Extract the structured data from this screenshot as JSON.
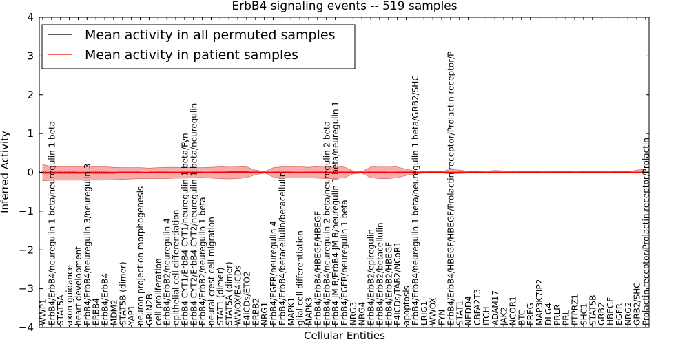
{
  "chart_data": {
    "type": "line",
    "title": "ErbB4 signaling events -- 519 samples",
    "xlabel": "Cellular Entities",
    "ylabel": "Inferred Activity",
    "ylim": [
      -4,
      4
    ],
    "yticks": [
      "−4",
      "−3",
      "−2",
      "−1",
      "0",
      "1",
      "2",
      "3",
      "4"
    ],
    "grid": false,
    "legend_position": "top-left",
    "categories": [
      "WWP1",
      "ErbB4/ErbB4/neuregulin 1 beta/neuregulin 1 beta",
      "STAT5A",
      "axon guidance",
      "heart development",
      "ErbB4/ErbB4/neuregulin 3/neuregulin 3",
      "ERBB4",
      "ErbB4/ErbB4",
      "MDM2",
      "STAT5B (dimer)",
      "YAP1",
      "neuron projection morphogenesis",
      "GRIN2B",
      "cell proliferation",
      "ErbB4/ErbB2/neuregulin 4",
      "epithelial cell differentiation",
      "ErbB4 CYT1/ErbB4 CYT1/neuregulin 1 beta/Fyn",
      "ErbB4 CYT2/ErbB4 CYT2/neuregulin 1 beta/neuregulin",
      "ErbB4/ErbB2/neuregulin 1 beta",
      "neural crest cell migration",
      "STAT1 (dimer)",
      "STAT5A (dimer)",
      "WWOX/E4ICDs",
      "E4ICDs/ETO2",
      "ERBB2",
      "NRG1",
      "ErbB4/EGFR/neuregulin 4",
      "ErbB4/ErbB4/betacellulin/betacellulin",
      "MAPK1",
      "glial cell differentiation",
      "MAPK3",
      "ErbB4/ErbB4/HBEGF/HBEGF",
      "ErbB4/ErbB4/neuregulin 2 beta/neuregulin 2 beta",
      "ErbB4 JM-B/ErbB4 JM-B/neuregulin 1 beta/neuregulin 1",
      "ErbB4/EGFR/neuregulin 1 beta",
      "NRG3",
      "NRG4",
      "ErbB4/ErbB2/epiregulin",
      "ErbB4/ErbB2/betacellulin",
      "ErbB4/ErbB2/HBEGF",
      "E4ICDs/TAB2/NCoR1",
      "apoptosis",
      "ErbB4/ErbB4/neuregulin 1 beta/neuregulin 1 beta/GRB2/SHC",
      "LRIG1",
      "WWOX",
      "FYN",
      "ErbB4/ErbB4/HBEGF/HBEGF/Prolactin receptor/Prolactin receptor/P",
      "STAT1",
      "NEDD4",
      "CBFA2T3",
      "ITCH",
      "ADAM17",
      "JAK2",
      "NCOR1",
      "BTC",
      "EREG",
      "MAP3K7IP2",
      "DLG4",
      "PRLR",
      "PRL",
      "PTPRZ1",
      "SHC1",
      "STAT5B",
      "GRB2",
      "HBEGF",
      "EGFR",
      "NRG2",
      "GRB2/SHC",
      "Prolactin receptor/Prolactin receptor/Prolactin"
    ],
    "series": [
      {
        "name": "Mean activity in all permuted samples",
        "color": "#000000",
        "values": [
          -0.02,
          -0.02,
          -0.02,
          -0.02,
          -0.02,
          -0.02,
          -0.02,
          -0.02,
          -0.02,
          -0.01,
          0.0,
          0.0,
          -0.01,
          0.0,
          0.0,
          0.0,
          0.0,
          0.0,
          0.0,
          0.0,
          0.0,
          0.01,
          0.01,
          0.01,
          0.0,
          0.0,
          0.0,
          0.0,
          0.0,
          0.0,
          0.0,
          0.0,
          0.0,
          0.0,
          0.0,
          0.0,
          0.0,
          0.0,
          0.0,
          0.0,
          0.0,
          0.0,
          0.0,
          0.0,
          0.0,
          0.0,
          0.0,
          0.0,
          0.0,
          0.0,
          0.0,
          0.0,
          0.0,
          0.0,
          0.0,
          0.0,
          0.0,
          0.0,
          0.0,
          0.0,
          0.0,
          0.0,
          0.0,
          0.0,
          0.0,
          0.0,
          0.0,
          0.0,
          0.0
        ]
      },
      {
        "name": "Mean activity in patient samples",
        "color": "#ff0000",
        "values": [
          0.0,
          0.0,
          0.0,
          0.0,
          0.0,
          0.0,
          0.0,
          0.0,
          0.0,
          0.0,
          0.0,
          0.0,
          0.0,
          0.0,
          0.0,
          0.0,
          0.0,
          0.0,
          0.0,
          0.0,
          0.0,
          0.0,
          0.0,
          0.0,
          0.0,
          0.0,
          0.0,
          0.0,
          0.0,
          0.0,
          0.0,
          0.0,
          0.0,
          0.0,
          0.0,
          0.0,
          0.0,
          0.0,
          0.0,
          0.0,
          0.0,
          0.0,
          0.0,
          0.0,
          0.0,
          0.0,
          0.0,
          0.0,
          0.0,
          0.0,
          0.0,
          0.0,
          0.0,
          0.0,
          0.0,
          0.0,
          0.0,
          0.0,
          0.0,
          0.0,
          0.0,
          0.0,
          0.0,
          0.0,
          0.0,
          0.0,
          0.0,
          0.0,
          0.0
        ]
      }
    ],
    "band": {
      "name": "patient sample spread",
      "color": "#f08080",
      "upper": [
        0.2,
        0.15,
        0.14,
        0.14,
        0.14,
        0.14,
        0.14,
        0.14,
        0.13,
        0.12,
        0.12,
        0.12,
        0.11,
        0.12,
        0.13,
        0.13,
        0.12,
        0.12,
        0.12,
        0.13,
        0.14,
        0.16,
        0.15,
        0.14,
        0.06,
        0.02,
        0.12,
        0.14,
        0.14,
        0.14,
        0.13,
        0.15,
        0.16,
        0.16,
        0.14,
        0.04,
        0.02,
        0.14,
        0.16,
        0.16,
        0.14,
        0.08,
        0.04,
        0.02,
        0.02,
        0.02,
        0.08,
        0.06,
        0.03,
        0.02,
        0.03,
        0.05,
        0.04,
        0.02,
        0.02,
        0.02,
        0.02,
        0.02,
        0.02,
        0.02,
        0.02,
        0.02,
        0.02,
        0.02,
        0.02,
        0.02,
        0.02,
        0.06,
        0.08
      ],
      "lower": [
        -0.22,
        -0.2,
        -0.2,
        -0.2,
        -0.2,
        -0.2,
        -0.2,
        -0.2,
        -0.19,
        -0.18,
        -0.17,
        -0.16,
        -0.16,
        -0.16,
        -0.16,
        -0.15,
        -0.15,
        -0.14,
        -0.13,
        -0.15,
        -0.16,
        -0.17,
        -0.16,
        -0.14,
        -0.06,
        -0.02,
        -0.12,
        -0.14,
        -0.14,
        -0.14,
        -0.14,
        -0.15,
        -0.16,
        -0.16,
        -0.14,
        -0.04,
        -0.02,
        -0.14,
        -0.16,
        -0.16,
        -0.14,
        -0.08,
        -0.04,
        -0.02,
        -0.02,
        -0.02,
        -0.04,
        -0.03,
        -0.02,
        -0.01,
        -0.01,
        -0.02,
        -0.02,
        -0.01,
        -0.01,
        -0.01,
        -0.01,
        -0.01,
        -0.01,
        -0.01,
        -0.01,
        -0.01,
        -0.01,
        -0.01,
        -0.01,
        -0.01,
        -0.01,
        -0.02,
        -0.02
      ]
    }
  }
}
